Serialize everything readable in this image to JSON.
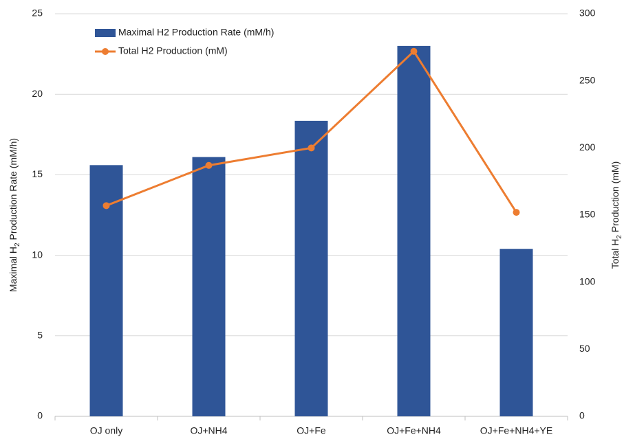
{
  "chart_data": {
    "type": "bar_line",
    "categories": [
      "OJ only",
      "OJ+NH4",
      "OJ+Fe",
      "OJ+Fe+NH4",
      "OJ+Fe+NH4+YE"
    ],
    "series": [
      {
        "name": "Maximal H2 Production Rate (mM/h)",
        "color": "#2f5597",
        "type": "bar",
        "values": [
          15.6,
          16.1,
          18.35,
          23.0,
          10.4
        ]
      },
      {
        "name": "Total H2 Production (mM)",
        "color": "#ed7d31",
        "type": "line",
        "axis": "y2",
        "values": [
          157,
          187,
          200,
          272,
          152
        ]
      }
    ],
    "ylabel": [
      "Maximal H",
      "2",
      " Production Rate (mM/h)"
    ],
    "y2label": [
      "Total H",
      "2",
      " Production (mM)"
    ],
    "ylim": [
      0,
      25
    ],
    "yticks": [
      0,
      5,
      10,
      15,
      20,
      25
    ],
    "y2lim": [
      0,
      300
    ],
    "y2ticks": [
      0,
      50,
      100,
      150,
      200,
      250,
      300
    ],
    "grid": true,
    "legend": "top-left"
  }
}
